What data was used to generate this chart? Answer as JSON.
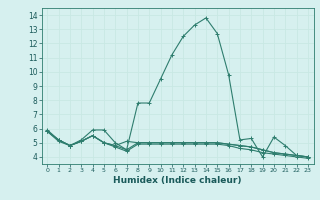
{
  "xlabel": "Humidex (Indice chaleur)",
  "background_color": "#d6f0ef",
  "grid_color": "#c8e8e4",
  "line_color": "#2e7d6e",
  "xlim": [
    -0.5,
    23.5
  ],
  "ylim": [
    3.5,
    14.5
  ],
  "yticks": [
    4,
    5,
    6,
    7,
    8,
    9,
    10,
    11,
    12,
    13,
    14
  ],
  "xticks": [
    0,
    1,
    2,
    3,
    4,
    5,
    6,
    7,
    8,
    9,
    10,
    11,
    12,
    13,
    14,
    15,
    16,
    17,
    18,
    19,
    20,
    21,
    22,
    23
  ],
  "series": [
    [
      5.9,
      5.2,
      4.8,
      5.2,
      5.9,
      5.9,
      5.0,
      4.5,
      7.8,
      7.8,
      9.5,
      11.2,
      12.5,
      13.3,
      13.8,
      12.7,
      9.8,
      5.2,
      5.3,
      4.0,
      5.4,
      4.8,
      4.1,
      4.0
    ],
    [
      5.8,
      5.2,
      4.8,
      5.1,
      5.5,
      5.0,
      4.8,
      5.1,
      5.0,
      5.0,
      5.0,
      5.0,
      5.0,
      5.0,
      5.0,
      5.0,
      4.9,
      4.8,
      4.7,
      4.5,
      4.3,
      4.2,
      4.1,
      4.0
    ],
    [
      5.8,
      5.2,
      4.8,
      5.1,
      5.5,
      5.0,
      4.8,
      4.5,
      5.0,
      5.0,
      5.0,
      5.0,
      5.0,
      5.0,
      5.0,
      5.0,
      4.9,
      4.8,
      4.7,
      4.5,
      4.3,
      4.2,
      4.1,
      4.0
    ],
    [
      5.8,
      5.1,
      4.8,
      5.1,
      5.5,
      5.0,
      4.7,
      4.4,
      4.9,
      4.9,
      4.9,
      4.9,
      4.9,
      4.9,
      4.9,
      4.9,
      4.8,
      4.6,
      4.5,
      4.3,
      4.2,
      4.1,
      4.0,
      3.9
    ]
  ]
}
